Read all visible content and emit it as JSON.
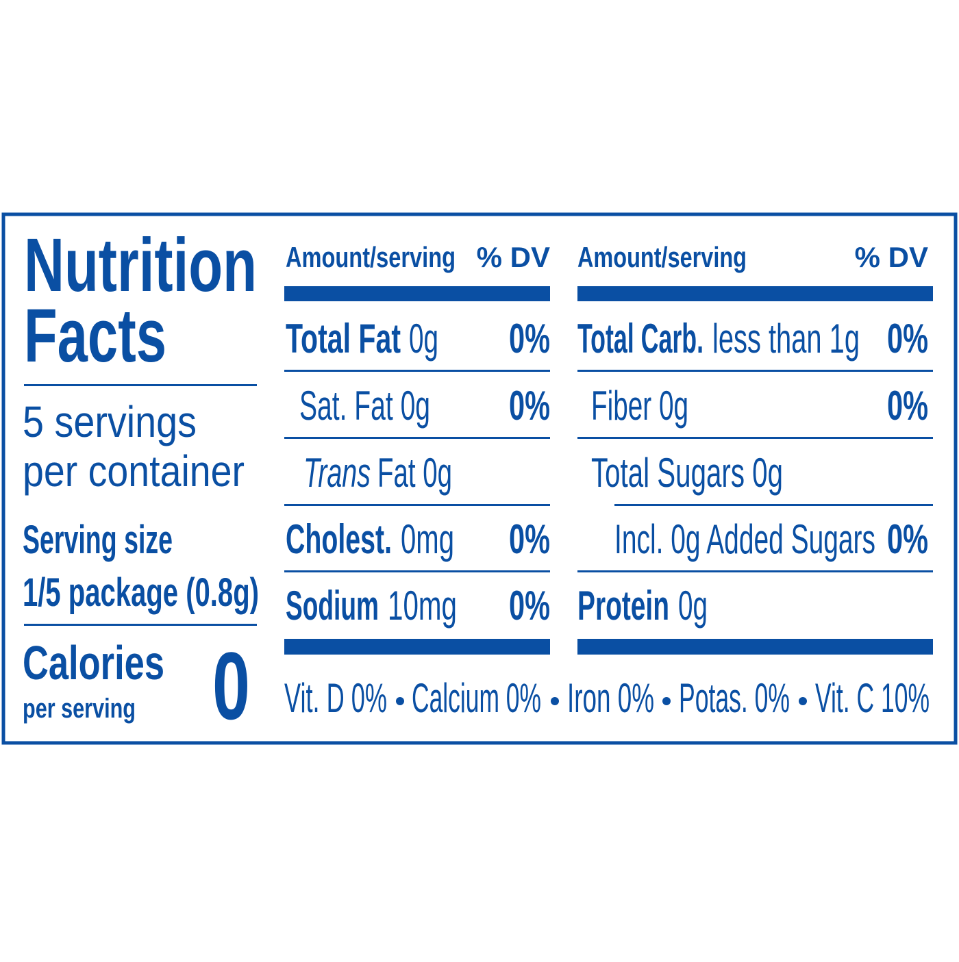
{
  "title": [
    "Nutrition",
    "Facts"
  ],
  "servings": [
    "5 servings",
    "per container"
  ],
  "serving_size": {
    "label": "Serving size",
    "value": "1/5 package (0.8g)"
  },
  "calories": {
    "label": "Calories",
    "sublabel": "per serving",
    "value": "0"
  },
  "columns": [
    {
      "header": {
        "amount": "Amount/serving",
        "dv": "% DV"
      },
      "rows": [
        {
          "name": "Total Fat",
          "amount": "0g",
          "dv": "0%"
        },
        {
          "name": "Sat. Fat 0g",
          "dv": "0%"
        },
        {
          "name_italic": "Trans",
          "name": "Fat 0g"
        },
        {
          "name": "Cholest.",
          "amount": "0mg",
          "dv": "0%"
        },
        {
          "name": "Sodium",
          "amount": "10mg",
          "dv": "0%"
        }
      ]
    },
    {
      "header": {
        "amount": "Amount/serving",
        "dv": "% DV"
      },
      "rows": [
        {
          "name": "Total Carb.",
          "amount": "less than 1g",
          "dv": "0%"
        },
        {
          "name": "Fiber 0g",
          "dv": "0%"
        },
        {
          "name": "Total Sugars 0g"
        },
        {
          "name": "Incl. 0g Added Sugars",
          "dv": "0%"
        },
        {
          "name": "Protein",
          "amount": "0g"
        }
      ]
    }
  ],
  "footer": [
    "Vit. D 0%",
    "Calcium 0%",
    "Iron 0%",
    "Potas. 0%",
    "Vit. C 10%"
  ]
}
